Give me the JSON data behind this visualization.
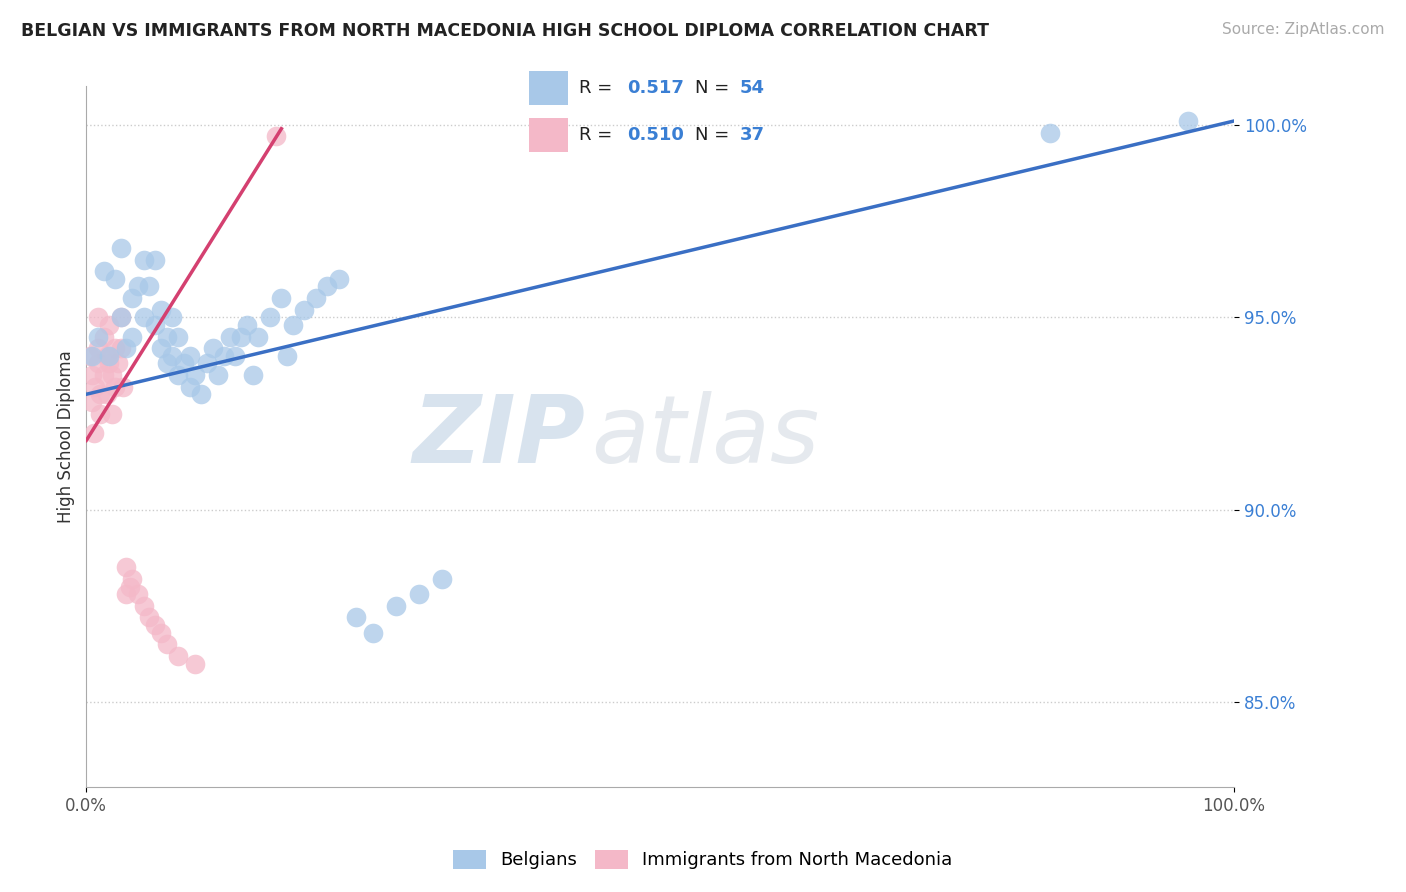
{
  "title": "BELGIAN VS IMMIGRANTS FROM NORTH MACEDONIA HIGH SCHOOL DIPLOMA CORRELATION CHART",
  "source": "Source: ZipAtlas.com",
  "ylabel": "High School Diploma",
  "xlim": [
    0.0,
    1.0
  ],
  "ylim": [
    0.828,
    1.01
  ],
  "y_ticks": [
    0.85,
    0.9,
    0.95,
    1.0
  ],
  "y_tick_labels": [
    "85.0%",
    "90.0%",
    "95.0%",
    "100.0%"
  ],
  "legend_r1": "0.517",
  "legend_n1": "54",
  "legend_r2": "0.510",
  "legend_n2": "37",
  "blue_color": "#a8c8e8",
  "pink_color": "#f4b8c8",
  "blue_line_color": "#3a6fc4",
  "pink_line_color": "#d44070",
  "watermark_zip": "ZIP",
  "watermark_atlas": "atlas",
  "belgians_x": [
    0.005,
    0.01,
    0.015,
    0.02,
    0.025,
    0.03,
    0.03,
    0.035,
    0.04,
    0.04,
    0.045,
    0.05,
    0.05,
    0.055,
    0.06,
    0.06,
    0.065,
    0.065,
    0.07,
    0.07,
    0.075,
    0.075,
    0.08,
    0.08,
    0.085,
    0.09,
    0.09,
    0.095,
    0.1,
    0.105,
    0.11,
    0.115,
    0.12,
    0.125,
    0.13,
    0.135,
    0.14,
    0.145,
    0.15,
    0.16,
    0.17,
    0.175,
    0.18,
    0.19,
    0.2,
    0.21,
    0.22,
    0.235,
    0.25,
    0.27,
    0.29,
    0.31,
    0.84,
    0.96
  ],
  "belgians_y": [
    0.94,
    0.945,
    0.962,
    0.94,
    0.96,
    0.968,
    0.95,
    0.942,
    0.955,
    0.945,
    0.958,
    0.95,
    0.965,
    0.958,
    0.948,
    0.965,
    0.952,
    0.942,
    0.945,
    0.938,
    0.95,
    0.94,
    0.935,
    0.945,
    0.938,
    0.932,
    0.94,
    0.935,
    0.93,
    0.938,
    0.942,
    0.935,
    0.94,
    0.945,
    0.94,
    0.945,
    0.948,
    0.935,
    0.945,
    0.95,
    0.955,
    0.94,
    0.948,
    0.952,
    0.955,
    0.958,
    0.96,
    0.872,
    0.868,
    0.875,
    0.878,
    0.882,
    0.998,
    1.001
  ],
  "immigrants_x": [
    0.003,
    0.005,
    0.005,
    0.007,
    0.008,
    0.01,
    0.01,
    0.01,
    0.012,
    0.012,
    0.015,
    0.015,
    0.018,
    0.018,
    0.02,
    0.02,
    0.022,
    0.022,
    0.025,
    0.025,
    0.028,
    0.03,
    0.03,
    0.032,
    0.035,
    0.035,
    0.038,
    0.04,
    0.045,
    0.05,
    0.055,
    0.06,
    0.065,
    0.07,
    0.08,
    0.095,
    0.165
  ],
  "immigrants_y": [
    0.94,
    0.935,
    0.928,
    0.92,
    0.932,
    0.95,
    0.942,
    0.938,
    0.925,
    0.93,
    0.945,
    0.935,
    0.94,
    0.93,
    0.948,
    0.938,
    0.935,
    0.925,
    0.942,
    0.932,
    0.938,
    0.942,
    0.95,
    0.932,
    0.878,
    0.885,
    0.88,
    0.882,
    0.878,
    0.875,
    0.872,
    0.87,
    0.868,
    0.865,
    0.862,
    0.86,
    0.997
  ],
  "blue_trend_x0": 0.0,
  "blue_trend_y0": 0.93,
  "blue_trend_x1": 1.0,
  "blue_trend_y1": 1.001,
  "pink_trend_x0": 0.0,
  "pink_trend_y0": 0.918,
  "pink_trend_x1": 0.17,
  "pink_trend_y1": 0.999
}
